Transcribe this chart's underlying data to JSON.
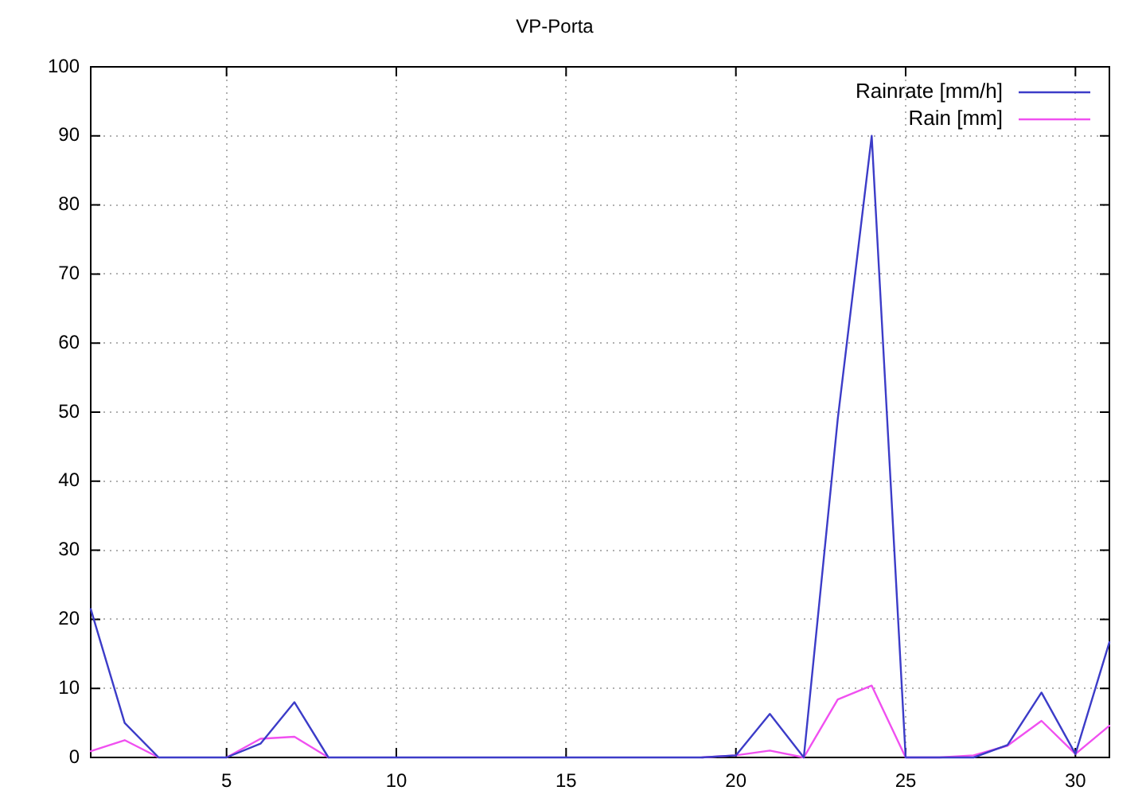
{
  "chart_data": {
    "type": "line",
    "title": "VP-Porta",
    "x": [
      1,
      2,
      3,
      4,
      5,
      6,
      7,
      8,
      9,
      10,
      11,
      12,
      13,
      14,
      15,
      16,
      17,
      18,
      19,
      20,
      21,
      22,
      23,
      24,
      25,
      26,
      27,
      28,
      29,
      30,
      31
    ],
    "series": [
      {
        "name": "Rainrate [mm/h]",
        "color": "#3c3cc8",
        "values": [
          21.5,
          5,
          0,
          0,
          0,
          2,
          8,
          0,
          0,
          0,
          0,
          0,
          0,
          0,
          0,
          0,
          0,
          0,
          0,
          0.3,
          6.3,
          0,
          49,
          90,
          0,
          0,
          0,
          1.8,
          9.4,
          0.5,
          16.7
        ]
      },
      {
        "name": "Rain [mm]",
        "color": "#f050f0",
        "values": [
          0.9,
          2.5,
          0,
          null,
          0,
          2.7,
          3,
          0,
          null,
          null,
          null,
          null,
          null,
          null,
          null,
          null,
          null,
          null,
          0,
          0.3,
          1,
          0,
          8.4,
          10.4,
          0,
          0,
          0.3,
          1.7,
          5.3,
          0.5,
          4.6
        ]
      }
    ],
    "xlim": [
      1,
      31
    ],
    "xticks": [
      5,
      10,
      15,
      20,
      25,
      30
    ],
    "ylim": [
      0,
      100
    ],
    "yticks": [
      0,
      10,
      20,
      30,
      40,
      50,
      60,
      70,
      80,
      90,
      100
    ],
    "grid": true,
    "legend": "top right",
    "marker": "none",
    "line_style": "solid"
  }
}
